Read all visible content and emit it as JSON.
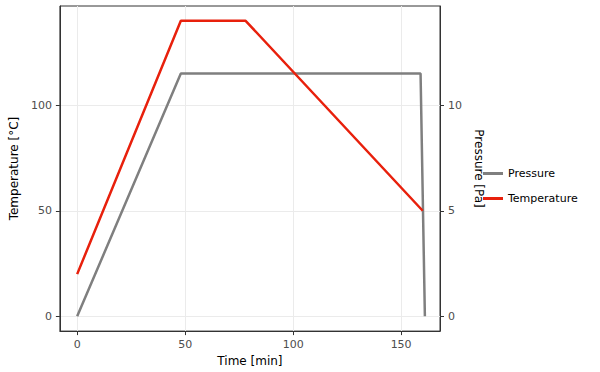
{
  "chart_data": {
    "type": "line",
    "x_label": "Time [min]",
    "y_label": "Temperature [°C]",
    "y2_label": "Pressure [Pa]",
    "xlim": [
      -8,
      168
    ],
    "xticks": [
      0,
      50,
      100,
      150
    ],
    "ylim": [
      -7,
      147
    ],
    "yticks": [
      0,
      50,
      100
    ],
    "y2lim": [
      -0.7,
      14.7
    ],
    "y2ticks": [
      0,
      5,
      10
    ],
    "grid": true,
    "legend": "right",
    "series": [
      {
        "name": "Pressure",
        "color": "#7f7f7f",
        "axis": "y2",
        "x": [
          0,
          48,
          159,
          161
        ],
        "values": [
          0,
          11.5,
          11.5,
          0
        ]
      },
      {
        "name": "Temperature",
        "color": "#e8200c",
        "x": [
          0,
          48,
          78,
          160
        ],
        "values": [
          20,
          140,
          140,
          50
        ]
      }
    ]
  }
}
